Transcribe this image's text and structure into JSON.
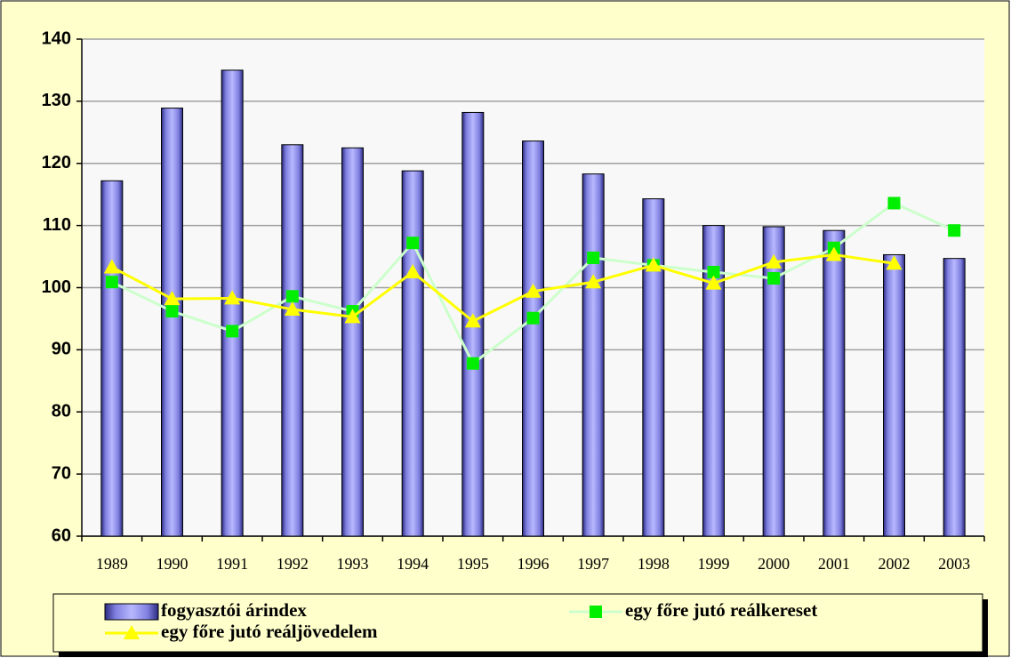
{
  "chart_data": {
    "type": "bar",
    "categories": [
      "1989",
      "1990",
      "1991",
      "1992",
      "1993",
      "1994",
      "1995",
      "1996",
      "1997",
      "1998",
      "1999",
      "2000",
      "2001",
      "2002",
      "2003"
    ],
    "series": [
      {
        "name": "fogyasztói árindex",
        "type": "bar",
        "color": "#9999ff",
        "values": [
          117.2,
          128.9,
          135,
          123,
          122.5,
          118.8,
          128.2,
          123.6,
          118.3,
          114.3,
          110,
          109.8,
          109.2,
          105.3,
          104.7
        ]
      },
      {
        "name": "egy főre jutó reálkereset",
        "type": "line",
        "color": "#ccffcc",
        "marker": "square",
        "marker_color": "#00ee00",
        "values": [
          100.9,
          96.2,
          93,
          98.6,
          96.2,
          107.2,
          87.8,
          95.1,
          104.8,
          103.6,
          102.5,
          101.5,
          106.4,
          113.6,
          109.2
        ]
      },
      {
        "name": "egy főre jutó reáljövedelem",
        "type": "line",
        "color": "#ffff00",
        "marker": "triangle",
        "marker_color": "#ffff00",
        "values": [
          103.3,
          98.2,
          98.3,
          96.5,
          95.3,
          102.5,
          94.6,
          99.4,
          100.9,
          103.6,
          100.7,
          104.1,
          105.3,
          103.9,
          null
        ]
      }
    ],
    "ylim": [
      60,
      140
    ],
    "yticks": [
      60,
      70,
      80,
      90,
      100,
      110,
      120,
      130,
      140
    ],
    "grid": true,
    "legend": "bottom"
  }
}
